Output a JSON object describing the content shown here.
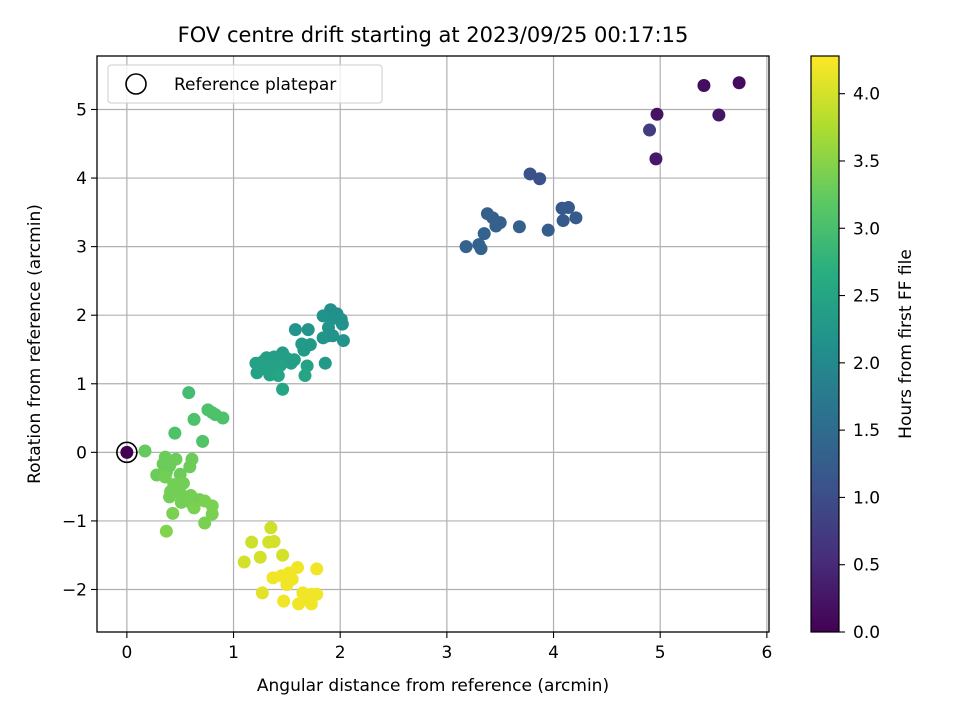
{
  "chart_data": {
    "type": "scatter",
    "title": "FOV centre drift starting at 2023/09/25 00:17:15",
    "xlabel": "Angular distance from reference (arcmin)",
    "ylabel": "Rotation from reference (arcmin)",
    "xlim": [
      -0.28,
      6.02
    ],
    "ylim": [
      -2.62,
      5.78
    ],
    "xticks": [
      0,
      1,
      2,
      3,
      4,
      5,
      6
    ],
    "yticks": [
      -2,
      -1,
      0,
      1,
      2,
      3,
      4,
      5
    ],
    "grid": true,
    "colormap": "viridis",
    "colorbar": {
      "label": "Hours from first FF file",
      "range": [
        0,
        4.28
      ],
      "ticks": [
        0.0,
        0.5,
        1.0,
        1.5,
        2.0,
        2.5,
        3.0,
        3.5,
        4.0
      ]
    },
    "legend": {
      "label": "Reference platepar",
      "placement": "top-left"
    },
    "reference_point": {
      "x": 0,
      "y": 0,
      "hours": 0
    },
    "points": [
      {
        "x": 5.74,
        "y": 5.39,
        "hours": 0.12
      },
      {
        "x": 5.41,
        "y": 5.35,
        "hours": 0.15
      },
      {
        "x": 4.97,
        "y": 4.93,
        "hours": 0.22
      },
      {
        "x": 5.55,
        "y": 4.92,
        "hours": 0.25
      },
      {
        "x": 4.9,
        "y": 4.7,
        "hours": 0.75
      },
      {
        "x": 4.96,
        "y": 4.28,
        "hours": 0.3
      },
      {
        "x": 3.78,
        "y": 4.06,
        "hours": 1.05
      },
      {
        "x": 3.87,
        "y": 3.99,
        "hours": 1.05
      },
      {
        "x": 4.08,
        "y": 3.56,
        "hours": 1.15
      },
      {
        "x": 4.14,
        "y": 3.57,
        "hours": 1.2
      },
      {
        "x": 4.21,
        "y": 3.42,
        "hours": 1.2
      },
      {
        "x": 4.09,
        "y": 3.38,
        "hours": 1.2
      },
      {
        "x": 3.38,
        "y": 3.48,
        "hours": 1.3
      },
      {
        "x": 3.43,
        "y": 3.42,
        "hours": 1.3
      },
      {
        "x": 3.5,
        "y": 3.35,
        "hours": 1.3
      },
      {
        "x": 3.46,
        "y": 3.3,
        "hours": 1.3
      },
      {
        "x": 3.68,
        "y": 3.29,
        "hours": 1.3
      },
      {
        "x": 3.95,
        "y": 3.24,
        "hours": 1.25
      },
      {
        "x": 3.35,
        "y": 3.19,
        "hours": 1.35
      },
      {
        "x": 3.18,
        "y": 3.0,
        "hours": 1.35
      },
      {
        "x": 3.3,
        "y": 3.03,
        "hours": 1.35
      },
      {
        "x": 3.32,
        "y": 2.97,
        "hours": 1.35
      },
      {
        "x": 1.91,
        "y": 2.08,
        "hours": 2.1
      },
      {
        "x": 1.97,
        "y": 2.02,
        "hours": 2.1
      },
      {
        "x": 1.84,
        "y": 1.99,
        "hours": 2.15
      },
      {
        "x": 1.93,
        "y": 1.95,
        "hours": 2.15
      },
      {
        "x": 2.01,
        "y": 1.94,
        "hours": 2.15
      },
      {
        "x": 2.02,
        "y": 1.87,
        "hours": 2.15
      },
      {
        "x": 1.89,
        "y": 1.82,
        "hours": 2.2
      },
      {
        "x": 1.58,
        "y": 1.79,
        "hours": 2.2
      },
      {
        "x": 1.7,
        "y": 1.79,
        "hours": 2.2
      },
      {
        "x": 1.89,
        "y": 1.7,
        "hours": 2.2
      },
      {
        "x": 1.93,
        "y": 1.7,
        "hours": 2.2
      },
      {
        "x": 1.84,
        "y": 1.67,
        "hours": 2.2
      },
      {
        "x": 2.03,
        "y": 1.63,
        "hours": 2.2
      },
      {
        "x": 1.64,
        "y": 1.58,
        "hours": 2.3
      },
      {
        "x": 1.72,
        "y": 1.57,
        "hours": 2.3
      },
      {
        "x": 1.66,
        "y": 1.49,
        "hours": 2.3
      },
      {
        "x": 1.46,
        "y": 1.45,
        "hours": 2.35
      },
      {
        "x": 1.31,
        "y": 1.38,
        "hours": 2.4
      },
      {
        "x": 1.38,
        "y": 1.39,
        "hours": 2.4
      },
      {
        "x": 1.5,
        "y": 1.37,
        "hours": 2.4
      },
      {
        "x": 1.57,
        "y": 1.35,
        "hours": 2.4
      },
      {
        "x": 1.28,
        "y": 1.33,
        "hours": 2.4
      },
      {
        "x": 1.21,
        "y": 1.3,
        "hours": 2.45
      },
      {
        "x": 1.54,
        "y": 1.3,
        "hours": 2.4
      },
      {
        "x": 1.35,
        "y": 1.28,
        "hours": 2.45
      },
      {
        "x": 1.44,
        "y": 1.27,
        "hours": 2.45
      },
      {
        "x": 1.69,
        "y": 1.26,
        "hours": 2.45
      },
      {
        "x": 1.86,
        "y": 1.3,
        "hours": 2.3
      },
      {
        "x": 1.29,
        "y": 1.22,
        "hours": 2.45
      },
      {
        "x": 1.4,
        "y": 1.18,
        "hours": 2.45
      },
      {
        "x": 1.22,
        "y": 1.16,
        "hours": 2.45
      },
      {
        "x": 1.34,
        "y": 1.13,
        "hours": 2.45
      },
      {
        "x": 1.42,
        "y": 1.12,
        "hours": 2.5
      },
      {
        "x": 1.67,
        "y": 1.12,
        "hours": 2.5
      },
      {
        "x": 1.46,
        "y": 0.92,
        "hours": 2.5
      },
      {
        "x": 0.58,
        "y": 0.87,
        "hours": 2.95
      },
      {
        "x": 0.76,
        "y": 0.62,
        "hours": 3.05
      },
      {
        "x": 0.8,
        "y": 0.58,
        "hours": 3.05
      },
      {
        "x": 0.83,
        "y": 0.55,
        "hours": 3.05
      },
      {
        "x": 0.9,
        "y": 0.5,
        "hours": 3.05
      },
      {
        "x": 0.63,
        "y": 0.48,
        "hours": 3.05
      },
      {
        "x": 0.45,
        "y": 0.28,
        "hours": 3.05
      },
      {
        "x": 0.71,
        "y": 0.16,
        "hours": 3.1
      },
      {
        "x": 0.17,
        "y": 0.02,
        "hours": 3.25
      },
      {
        "x": 0.36,
        "y": -0.07,
        "hours": 3.3
      },
      {
        "x": 0.46,
        "y": -0.1,
        "hours": 3.3
      },
      {
        "x": 0.61,
        "y": -0.1,
        "hours": 3.3
      },
      {
        "x": 0.34,
        "y": -0.17,
        "hours": 3.3
      },
      {
        "x": 0.4,
        "y": -0.2,
        "hours": 3.3
      },
      {
        "x": 0.59,
        "y": -0.21,
        "hours": 3.3
      },
      {
        "x": 0.37,
        "y": -0.29,
        "hours": 3.3
      },
      {
        "x": 0.28,
        "y": -0.33,
        "hours": 3.3
      },
      {
        "x": 0.5,
        "y": -0.32,
        "hours": 3.3
      },
      {
        "x": 0.36,
        "y": -0.36,
        "hours": 3.35
      },
      {
        "x": 0.53,
        "y": -0.45,
        "hours": 3.35
      },
      {
        "x": 0.44,
        "y": -0.47,
        "hours": 3.35
      },
      {
        "x": 0.41,
        "y": -0.57,
        "hours": 3.35
      },
      {
        "x": 0.5,
        "y": -0.59,
        "hours": 3.35
      },
      {
        "x": 0.6,
        "y": -0.63,
        "hours": 3.35
      },
      {
        "x": 0.68,
        "y": -0.69,
        "hours": 3.35
      },
      {
        "x": 0.4,
        "y": -0.65,
        "hours": 3.35
      },
      {
        "x": 0.51,
        "y": -0.73,
        "hours": 3.35
      },
      {
        "x": 0.61,
        "y": -0.75,
        "hours": 3.35
      },
      {
        "x": 0.73,
        "y": -0.71,
        "hours": 3.4
      },
      {
        "x": 0.8,
        "y": -0.78,
        "hours": 3.4
      },
      {
        "x": 0.63,
        "y": -0.81,
        "hours": 3.4
      },
      {
        "x": 0.43,
        "y": -0.89,
        "hours": 3.4
      },
      {
        "x": 0.8,
        "y": -0.9,
        "hours": 3.4
      },
      {
        "x": 0.73,
        "y": -1.03,
        "hours": 3.4
      },
      {
        "x": 0.37,
        "y": -1.15,
        "hours": 3.45
      },
      {
        "x": 1.35,
        "y": -1.1,
        "hours": 3.95
      },
      {
        "x": 1.17,
        "y": -1.31,
        "hours": 3.95
      },
      {
        "x": 1.33,
        "y": -1.31,
        "hours": 4.0
      },
      {
        "x": 1.38,
        "y": -1.3,
        "hours": 4.0
      },
      {
        "x": 1.46,
        "y": -1.5,
        "hours": 4.0
      },
      {
        "x": 1.25,
        "y": -1.53,
        "hours": 4.0
      },
      {
        "x": 1.1,
        "y": -1.6,
        "hours": 4.0
      },
      {
        "x": 1.6,
        "y": -1.68,
        "hours": 4.2
      },
      {
        "x": 1.78,
        "y": -1.7,
        "hours": 4.2
      },
      {
        "x": 1.52,
        "y": -1.76,
        "hours": 4.2
      },
      {
        "x": 1.45,
        "y": -1.8,
        "hours": 4.2
      },
      {
        "x": 1.37,
        "y": -1.83,
        "hours": 4.2
      },
      {
        "x": 1.55,
        "y": -1.85,
        "hours": 4.2
      },
      {
        "x": 1.5,
        "y": -1.93,
        "hours": 4.2
      },
      {
        "x": 1.27,
        "y": -2.05,
        "hours": 4.1
      },
      {
        "x": 1.65,
        "y": -2.05,
        "hours": 4.2
      },
      {
        "x": 1.73,
        "y": -2.07,
        "hours": 4.2
      },
      {
        "x": 1.78,
        "y": -2.07,
        "hours": 4.2
      },
      {
        "x": 1.69,
        "y": -2.14,
        "hours": 4.2
      },
      {
        "x": 1.47,
        "y": -2.17,
        "hours": 4.2
      },
      {
        "x": 1.61,
        "y": -2.21,
        "hours": 4.2
      },
      {
        "x": 1.73,
        "y": -2.21,
        "hours": 4.2
      }
    ]
  }
}
